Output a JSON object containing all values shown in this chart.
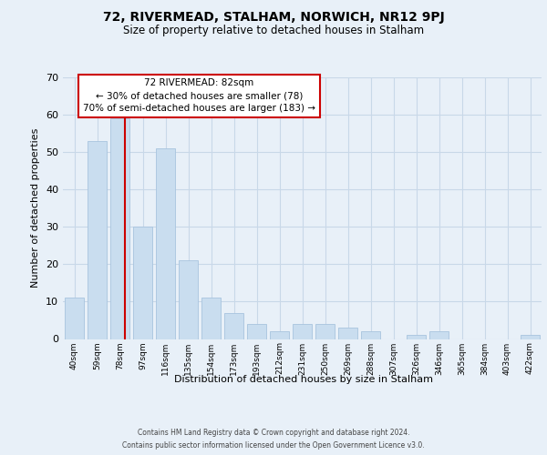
{
  "title": "72, RIVERMEAD, STALHAM, NORWICH, NR12 9PJ",
  "subtitle": "Size of property relative to detached houses in Stalham",
  "xlabel": "Distribution of detached houses by size in Stalham",
  "ylabel": "Number of detached properties",
  "bar_labels": [
    "40sqm",
    "59sqm",
    "78sqm",
    "97sqm",
    "116sqm",
    "135sqm",
    "154sqm",
    "173sqm",
    "193sqm",
    "212sqm",
    "231sqm",
    "250sqm",
    "269sqm",
    "288sqm",
    "307sqm",
    "326sqm",
    "346sqm",
    "365sqm",
    "384sqm",
    "403sqm",
    "422sqm"
  ],
  "bar_values": [
    11,
    53,
    59,
    30,
    51,
    21,
    11,
    7,
    4,
    2,
    4,
    4,
    3,
    2,
    0,
    1,
    2,
    0,
    0,
    0,
    1
  ],
  "bar_color": "#c9ddef",
  "bar_edge_color": "#a8c4de",
  "grid_color": "#c8d8e8",
  "bg_color": "#e8f0f8",
  "plot_bg_color": "#e8f0f8",
  "marker_line_color": "#cc0000",
  "annotation_text": "72 RIVERMEAD: 82sqm\n← 30% of detached houses are smaller (78)\n70% of semi-detached houses are larger (183) →",
  "annotation_box_edge": "#cc0000",
  "annotation_box_face": "#ffffff",
  "ylim": [
    0,
    70
  ],
  "yticks": [
    0,
    10,
    20,
    30,
    40,
    50,
    60,
    70
  ],
  "footnote1": "Contains HM Land Registry data © Crown copyright and database right 2024.",
  "footnote2": "Contains public sector information licensed under the Open Government Licence v3.0.",
  "title_fontsize": 10,
  "subtitle_fontsize": 8.5,
  "ylabel_fontsize": 8,
  "xlabel_fontsize": 8,
  "ytick_fontsize": 8,
  "xtick_fontsize": 6.5,
  "footnote_fontsize": 5.5
}
